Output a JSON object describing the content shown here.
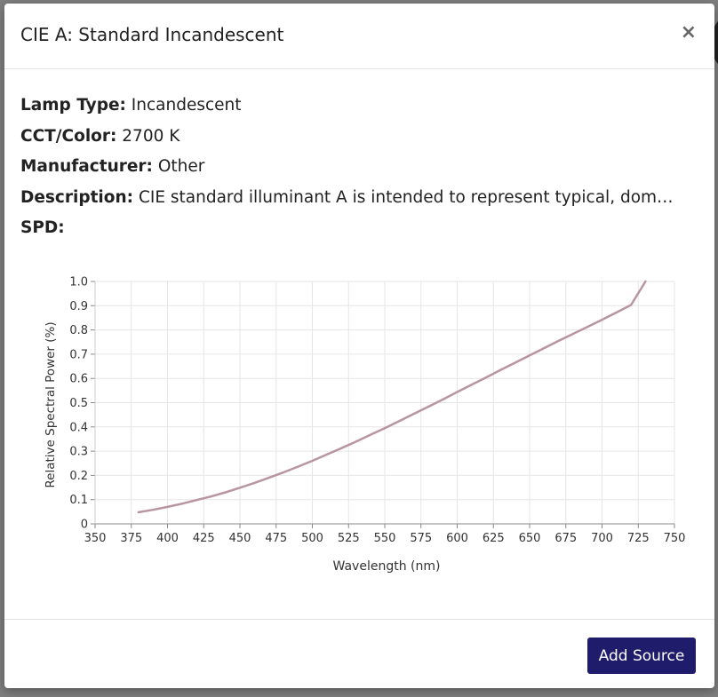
{
  "modal": {
    "title": "CIE A: Standard Incandescent",
    "close_label": "×",
    "properties": [
      {
        "label": "Lamp Type:",
        "value": "Incandescent"
      },
      {
        "label": "CCT/Color:",
        "value": "2700 K"
      },
      {
        "label": "Manufacturer:",
        "value": "Other"
      },
      {
        "label": "Description:",
        "value": "CIE standard illuminant A is intended to represent typical, dom…"
      },
      {
        "label": "SPD:",
        "value": ""
      }
    ],
    "add_button_label": "Add Source",
    "accent_color": "#1f1c6b"
  },
  "chart_data": {
    "type": "line",
    "title": "",
    "xlabel": "Wavelength (nm)",
    "ylabel": "Relative Spectral Power (%)",
    "xlim": [
      350,
      750
    ],
    "ylim": [
      0,
      1.0
    ],
    "x_ticks": [
      350,
      375,
      400,
      425,
      450,
      475,
      500,
      525,
      550,
      575,
      600,
      625,
      650,
      675,
      700,
      725,
      750
    ],
    "y_ticks": [
      0,
      0.1,
      0.2,
      0.3,
      0.4,
      0.5,
      0.6,
      0.7,
      0.8,
      0.9,
      1.0
    ],
    "y_tick_labels": [
      "0",
      "0.1",
      "0.2",
      "0.3",
      "0.4",
      "0.5",
      "0.6",
      "0.7",
      "0.8",
      "0.9",
      "1.0"
    ],
    "grid": true,
    "line_color": "#b994a3",
    "series": [
      {
        "x": [
          380,
          390,
          400,
          410,
          420,
          430,
          440,
          450,
          460,
          470,
          480,
          490,
          500,
          510,
          520,
          530,
          540,
          550,
          560,
          570,
          580,
          590,
          600,
          610,
          620,
          630,
          640,
          650,
          660,
          670,
          680,
          690,
          700,
          710,
          720,
          730
        ],
        "values": [
          0.048,
          0.058,
          0.07,
          0.083,
          0.098,
          0.113,
          0.13,
          0.149,
          0.169,
          0.19,
          0.212,
          0.236,
          0.26,
          0.286,
          0.312,
          0.339,
          0.367,
          0.395,
          0.424,
          0.454,
          0.483,
          0.513,
          0.544,
          0.574,
          0.604,
          0.635,
          0.665,
          0.695,
          0.725,
          0.755,
          0.784,
          0.813,
          0.842,
          0.872,
          0.903,
          1.0
        ]
      }
    ]
  }
}
